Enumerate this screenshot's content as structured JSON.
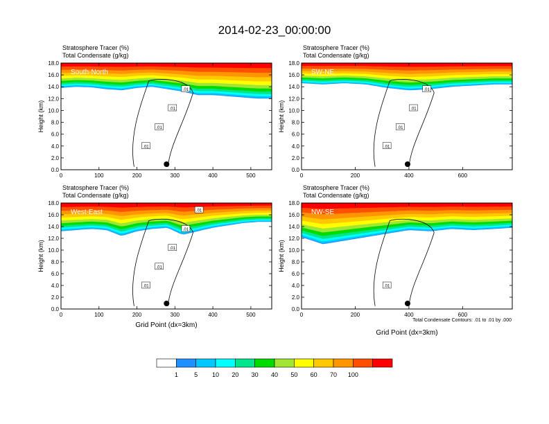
{
  "figure": {
    "title": "2014-02-23_00:00:00",
    "contour_note": "Total Condensate Contours: .01 to .01 by .000"
  },
  "colorbar": {
    "labels": [
      "1",
      "5",
      "10",
      "20",
      "30",
      "40",
      "50",
      "60",
      "70",
      "100"
    ],
    "colors": [
      "#ffffff",
      "#1e90ff",
      "#00c8ff",
      "#00ffff",
      "#00e68c",
      "#00dc00",
      "#a0e632",
      "#ffff00",
      "#ffc800",
      "#ff9600",
      "#ff5000",
      "#ff0000"
    ]
  },
  "chart_data": [
    {
      "type": "heatmap",
      "title": "Stratosphere Tracer   (%)",
      "subtitle": "Total Condensate   (g/kg)",
      "panel_label": "South-North",
      "xlabel": "",
      "ylabel": "Height (km)",
      "xlim": [
        0,
        555
      ],
      "ylim": [
        0,
        18
      ],
      "x_ticks": [
        "0",
        "100",
        "200",
        "300",
        "400",
        "500"
      ],
      "x_tick_values": [
        0,
        100,
        200,
        300,
        400,
        500
      ],
      "y_ticks": [
        "0.0",
        "2.0",
        "4.0",
        "6.0",
        "8.0",
        "10.0",
        "12.0",
        "14.0",
        "16.0",
        "18.0"
      ],
      "marker_x": 278,
      "contour_labels": [
        ".01",
        ".01",
        ".01",
        ".01"
      ],
      "tracer_profile": {
        "x": [
          0,
          40,
          80,
          120,
          160,
          200,
          240,
          280,
          320,
          360,
          400,
          440,
          480,
          520,
          555
        ],
        "bottom_km": [
          13.8,
          14.0,
          13.9,
          13.6,
          13.4,
          13.8,
          14.0,
          13.6,
          13.2,
          12.6,
          12.6,
          12.4,
          12.2,
          12.0,
          12.0
        ]
      }
    },
    {
      "type": "heatmap",
      "title": "Stratosphere Tracer   (%)",
      "subtitle": "Total Condensate   (g/kg)",
      "panel_label": "SW-NE",
      "xlabel": "",
      "ylabel": "Height (km)",
      "xlim": [
        0,
        785
      ],
      "ylim": [
        0,
        18
      ],
      "x_ticks": [
        "0",
        "200",
        "400",
        "600"
      ],
      "x_tick_values": [
        0,
        200,
        400,
        600
      ],
      "y_ticks": [
        "0.0",
        "2.0",
        "4.0",
        "6.0",
        "8.0",
        "10.0",
        "12.0",
        "14.0",
        "16.0",
        "18.0"
      ],
      "marker_x": 395,
      "contour_labels": [
        ".01",
        ".01",
        ".01",
        ".01"
      ],
      "tracer_profile": {
        "x": [
          0,
          80,
          160,
          240,
          320,
          400,
          480,
          560,
          640,
          720,
          785
        ],
        "bottom_km": [
          14.6,
          14.4,
          14.6,
          14.4,
          13.8,
          13.4,
          13.6,
          14.0,
          14.2,
          14.4,
          14.4
        ]
      }
    },
    {
      "type": "heatmap",
      "title": "Stratosphere Tracer   (%)",
      "subtitle": "Total Condensate   (g/kg)",
      "panel_label": "West-East",
      "xlabel": "Grid Point (dx=3km)",
      "ylabel": "Height (km)",
      "xlim": [
        0,
        555
      ],
      "ylim": [
        0,
        18
      ],
      "x_ticks": [
        "0",
        "100",
        "200",
        "300",
        "400",
        "500"
      ],
      "x_tick_values": [
        0,
        100,
        200,
        300,
        400,
        500
      ],
      "y_ticks": [
        "0.0",
        "2.0",
        "4.0",
        "6.0",
        "8.0",
        "10.0",
        "12.0",
        "14.0",
        "16.0",
        "18.0"
      ],
      "marker_x": 278,
      "contour_labels": [
        ".01",
        ".01",
        ".01",
        ".01",
        ".01"
      ],
      "tracer_profile": {
        "x": [
          0,
          40,
          80,
          120,
          160,
          200,
          240,
          280,
          320,
          360,
          400,
          440,
          480,
          520,
          555
        ],
        "bottom_km": [
          13.2,
          13.4,
          13.6,
          13.4,
          12.4,
          13.2,
          13.6,
          13.8,
          12.6,
          13.2,
          13.8,
          14.2,
          14.6,
          14.8,
          14.8
        ]
      }
    },
    {
      "type": "heatmap",
      "title": "Stratosphere Tracer   (%)",
      "subtitle": "Total Condensate   (g/kg)",
      "panel_label": "NW-SE",
      "xlabel": "Grid Point (dx=3km)",
      "ylabel": "Height (km)",
      "xlim": [
        0,
        785
      ],
      "ylim": [
        0,
        18
      ],
      "x_ticks": [
        "0",
        "200",
        "400",
        "600"
      ],
      "x_tick_values": [
        0,
        200,
        400,
        600
      ],
      "y_ticks": [
        "0.0",
        "2.0",
        "4.0",
        "6.0",
        "8.0",
        "10.0",
        "12.0",
        "14.0",
        "16.0",
        "18.0"
      ],
      "marker_x": 395,
      "contour_labels": [
        ".01"
      ],
      "tracer_profile": {
        "x": [
          0,
          80,
          160,
          240,
          320,
          400,
          480,
          560,
          640,
          720,
          785
        ],
        "bottom_km": [
          12.2,
          11.0,
          11.6,
          12.2,
          12.8,
          13.4,
          13.2,
          13.6,
          13.4,
          13.6,
          13.8
        ]
      }
    }
  ]
}
